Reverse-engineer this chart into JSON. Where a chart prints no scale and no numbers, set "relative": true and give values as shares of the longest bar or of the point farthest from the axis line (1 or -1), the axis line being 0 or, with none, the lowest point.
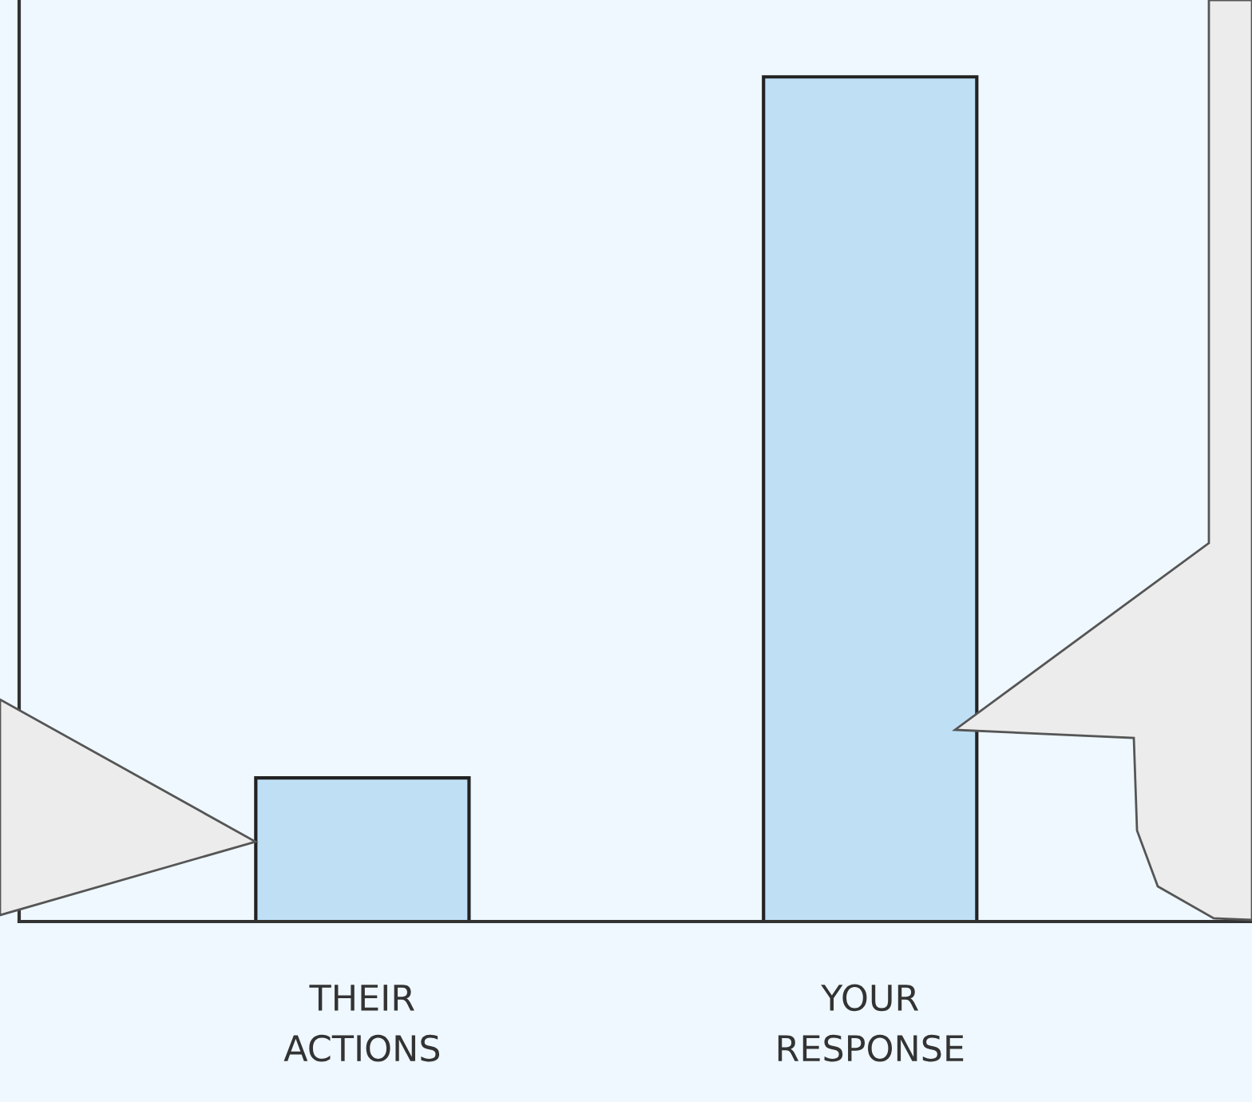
{
  "chart_data": {
    "type": "bar",
    "relative": true,
    "categories": [
      "THEIR\nACTIONS",
      "YOUR\nRESPONSE"
    ],
    "values": [
      0.17,
      1
    ],
    "color": "#bfdff5"
  }
}
